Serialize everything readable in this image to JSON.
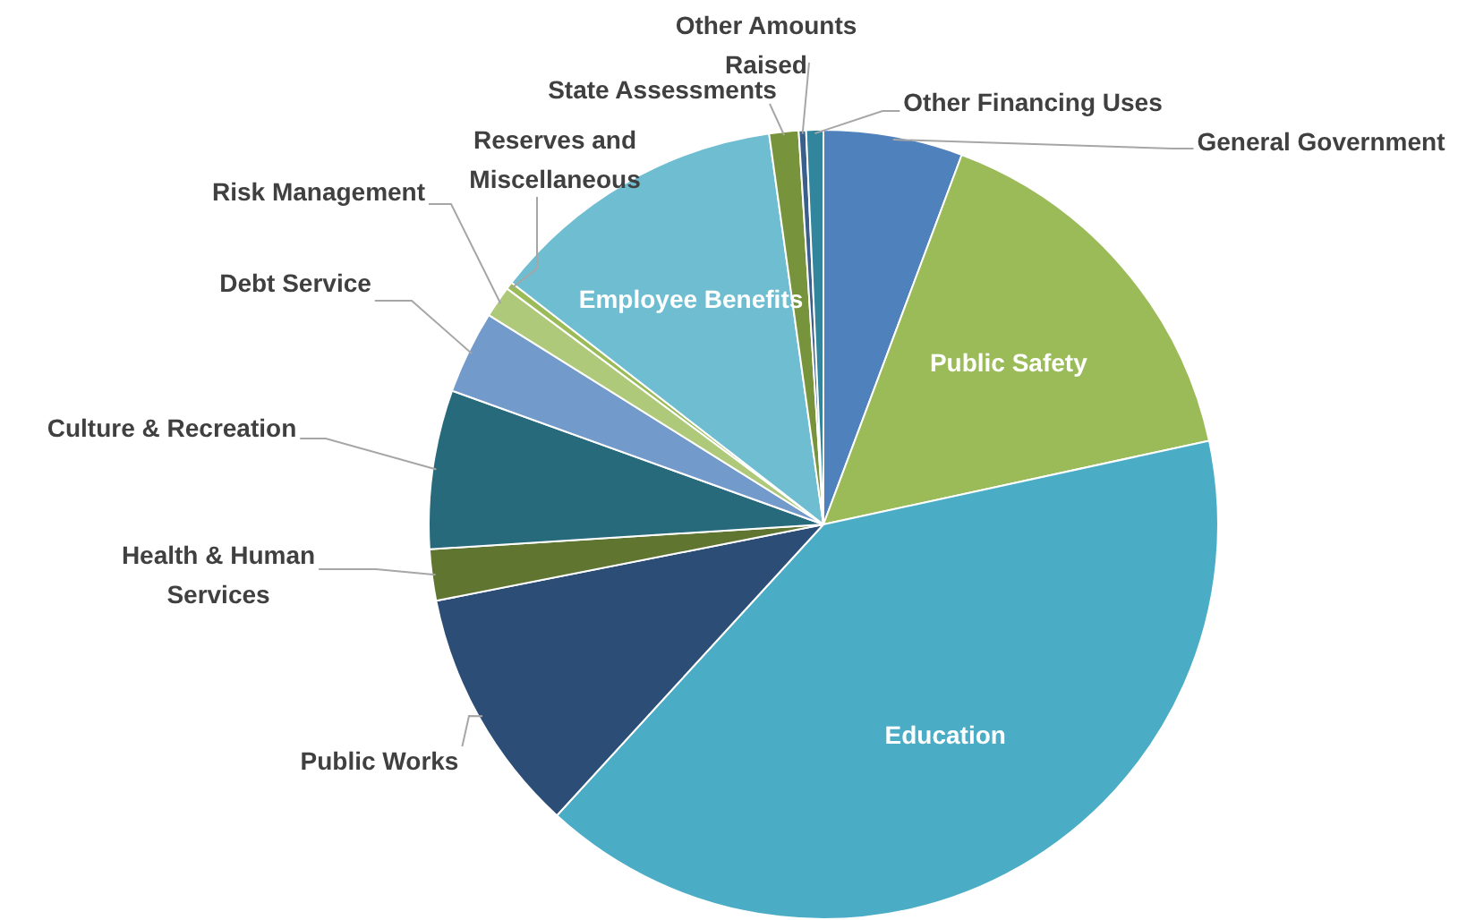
{
  "chart_data": {
    "type": "pie",
    "categories": [
      "General Government",
      "Public Safety",
      "Education",
      "Public Works",
      "Health & Human Services",
      "Culture & Recreation",
      "Debt Service",
      "Risk Management",
      "Reserves and Miscellaneous",
      "Employee Benefits",
      "State Assessments",
      "Other Amounts Raised",
      "Other Financing Uses"
    ],
    "values": [
      5.7,
      15.9,
      40.2,
      10.1,
      2.1,
      6.5,
      3.4,
      1.3,
      0.3,
      12.3,
      1.2,
      0.3,
      0.7
    ],
    "colors": [
      "#4f81bd",
      "#9bbb59",
      "#4bacc6",
      "#2c4d75",
      "#5f7530",
      "#276a7c",
      "#729aca",
      "#afc97a",
      "#9bbb59",
      "#6fbdd1",
      "#77933c",
      "#3a5f8b",
      "#31859c"
    ],
    "legend": false
  }
}
